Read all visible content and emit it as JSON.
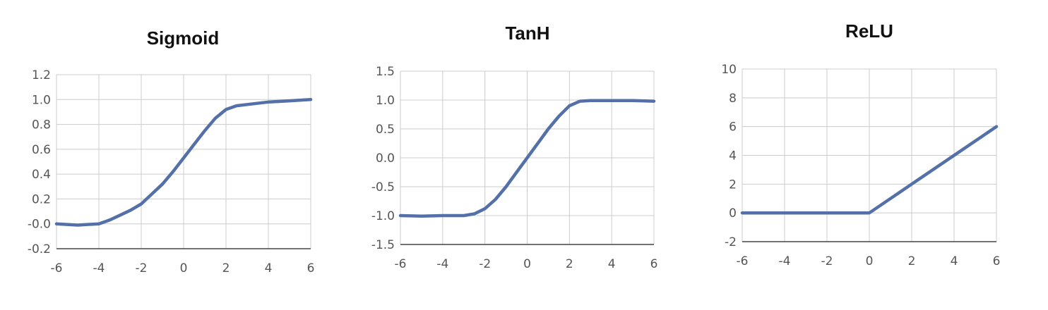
{
  "colors": {
    "line": "#5470a8",
    "grid": "#cccccc",
    "axis": "#444444"
  },
  "chart_data": [
    {
      "type": "line",
      "title": "Sigmoid",
      "xlabel": "",
      "ylabel": "",
      "xlim": [
        -6,
        6
      ],
      "ylim": [
        -0.2,
        1.2
      ],
      "xticks": [
        -6,
        -4,
        -2,
        0,
        2,
        4,
        6
      ],
      "xtick_labels": [
        "-6",
        "-4",
        "-2",
        "0",
        "2",
        "4",
        "6"
      ],
      "yticks": [
        -0.2,
        0.0,
        0.2,
        0.4,
        0.6,
        0.8,
        1.0,
        1.2
      ],
      "ytick_labels": [
        "-0.2",
        "-0.0",
        "0.2",
        "0.4",
        "0.6",
        "0.8",
        "1.0",
        "1.2"
      ],
      "grid": true,
      "series": [
        {
          "x": [
            -6,
            -5,
            -4,
            -3.5,
            -3,
            -2.5,
            -2,
            -1.5,
            -1,
            -0.5,
            0,
            0.5,
            1,
            1.5,
            2,
            2.5,
            3,
            4,
            5,
            6
          ],
          "y": [
            0.0,
            -0.01,
            0.0,
            0.03,
            0.07,
            0.11,
            0.16,
            0.24,
            0.32,
            0.42,
            0.53,
            0.64,
            0.75,
            0.85,
            0.92,
            0.95,
            0.96,
            0.98,
            0.99,
            1.0
          ]
        }
      ]
    },
    {
      "type": "line",
      "title": "TanH",
      "xlabel": "",
      "ylabel": "",
      "xlim": [
        -6,
        6
      ],
      "ylim": [
        -1.5,
        1.5
      ],
      "xticks": [
        -6,
        -4,
        -2,
        0,
        2,
        4,
        6
      ],
      "xtick_labels": [
        "-6",
        "-4",
        "-2",
        "0",
        "2",
        "4",
        "6"
      ],
      "yticks": [
        -1.5,
        -1.0,
        -0.5,
        0.0,
        0.5,
        1.0,
        1.5
      ],
      "ytick_labels": [
        "-1.5",
        "-1.0",
        "-0.5",
        "0.0",
        "0.5",
        "1.0",
        "1.5"
      ],
      "grid": true,
      "series": [
        {
          "x": [
            -6,
            -5,
            -4,
            -3,
            -2.5,
            -2,
            -1.5,
            -1,
            -0.5,
            0,
            0.5,
            1,
            1.5,
            2,
            2.5,
            3,
            4,
            5,
            6
          ],
          "y": [
            -1.0,
            -1.01,
            -1.0,
            -1.0,
            -0.97,
            -0.88,
            -0.72,
            -0.5,
            -0.25,
            0.0,
            0.25,
            0.5,
            0.72,
            0.9,
            0.98,
            0.99,
            0.99,
            0.99,
            0.98
          ]
        }
      ]
    },
    {
      "type": "line",
      "title": "ReLU",
      "xlabel": "",
      "ylabel": "",
      "xlim": [
        -6,
        6
      ],
      "ylim": [
        -2,
        10
      ],
      "xticks": [
        -6,
        -4,
        -2,
        0,
        2,
        4,
        6
      ],
      "xtick_labels": [
        "-6",
        "-4",
        "-2",
        "0",
        "2",
        "4",
        "6"
      ],
      "yticks": [
        -2,
        0,
        2,
        4,
        6,
        8,
        10
      ],
      "ytick_labels": [
        "-2",
        "0",
        "2",
        "4",
        "6",
        "8",
        "10"
      ],
      "grid": true,
      "series": [
        {
          "x": [
            -6,
            -4,
            -2,
            0,
            2,
            4,
            6
          ],
          "y": [
            0,
            0,
            0,
            0,
            2,
            4,
            6
          ]
        }
      ]
    }
  ]
}
